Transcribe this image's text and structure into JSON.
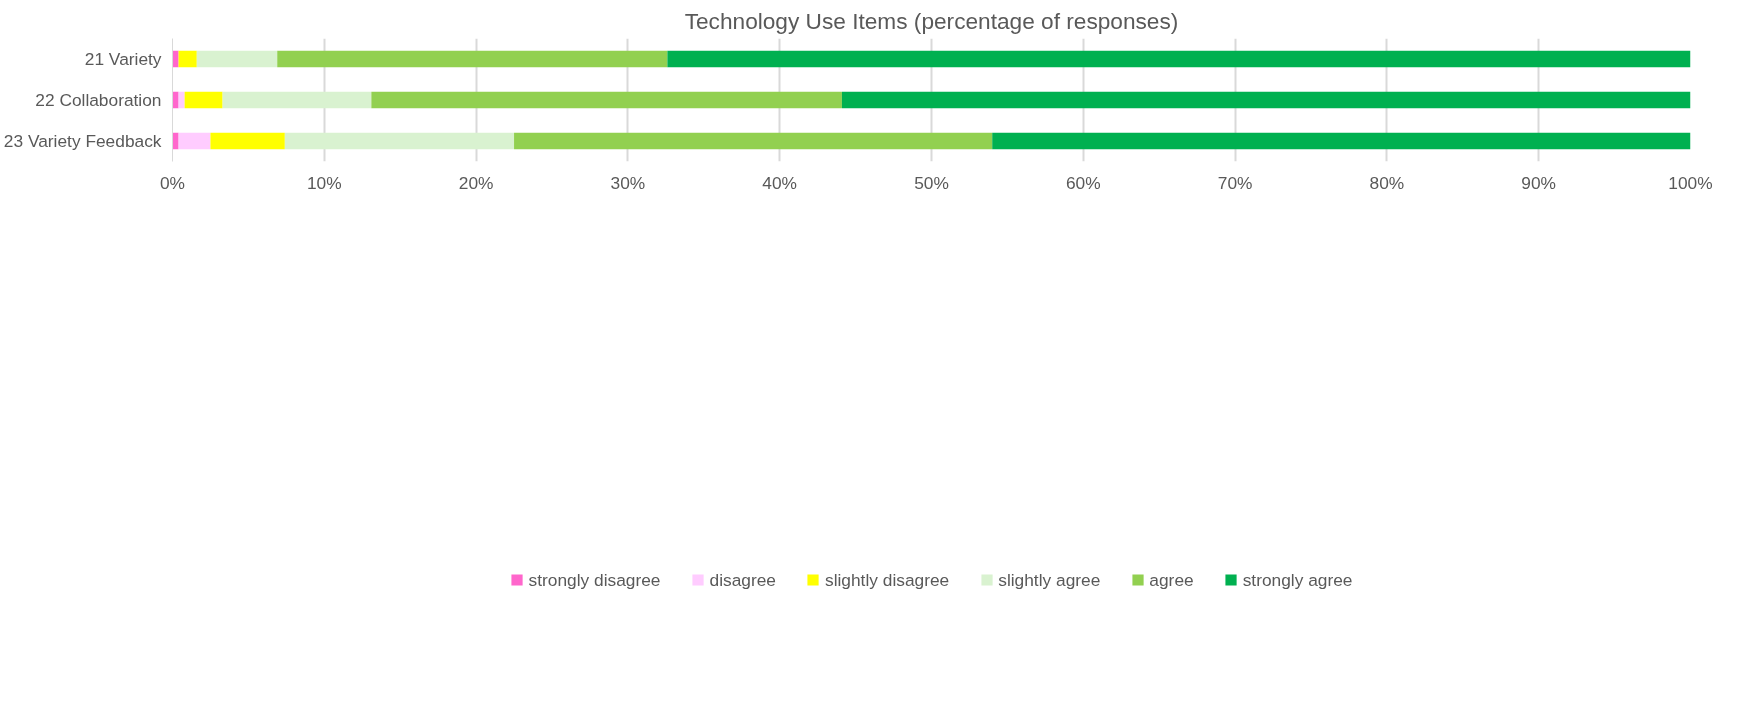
{
  "chart_data": {
    "type": "bar",
    "orientation": "horizontal",
    "stacked": true,
    "title": "Technology Use Items (percentage of responses)",
    "categories": [
      "21 Variety",
      "22 Collaboration",
      "23 Variety Feedback"
    ],
    "series": [
      {
        "name": "strongly disagree",
        "color": "#ff66cc",
        "values": [
          0.4,
          0.4,
          0.4
        ]
      },
      {
        "name": "disagree",
        "color": "#ffccff",
        "values": [
          0,
          0.4,
          2.1
        ]
      },
      {
        "name": "slightly disagree",
        "color": "#ffff00",
        "values": [
          1.2,
          2.5,
          4.9
        ]
      },
      {
        "name": "slightly agree",
        "color": "#d9f2d0",
        "values": [
          5.3,
          9.8,
          15.1
        ]
      },
      {
        "name": "agree",
        "color": "#92d050",
        "values": [
          25.7,
          31.0,
          31.5
        ]
      },
      {
        "name": "strongly agree",
        "color": "#00b050",
        "values": [
          67.4,
          55.9,
          46.0
        ]
      }
    ],
    "xlim": [
      0,
      100
    ],
    "xticks": [
      {
        "value": 0,
        "label": "0%"
      },
      {
        "value": 10,
        "label": "10%"
      },
      {
        "value": 20,
        "label": "20%"
      },
      {
        "value": 30,
        "label": "30%"
      },
      {
        "value": 40,
        "label": "40%"
      },
      {
        "value": 50,
        "label": "50%"
      },
      {
        "value": 60,
        "label": "60%"
      },
      {
        "value": 70,
        "label": "70%"
      },
      {
        "value": 80,
        "label": "80%"
      },
      {
        "value": 90,
        "label": "90%"
      },
      {
        "value": 100,
        "label": "100%"
      }
    ],
    "grid": "x",
    "legend": "bottom"
  }
}
